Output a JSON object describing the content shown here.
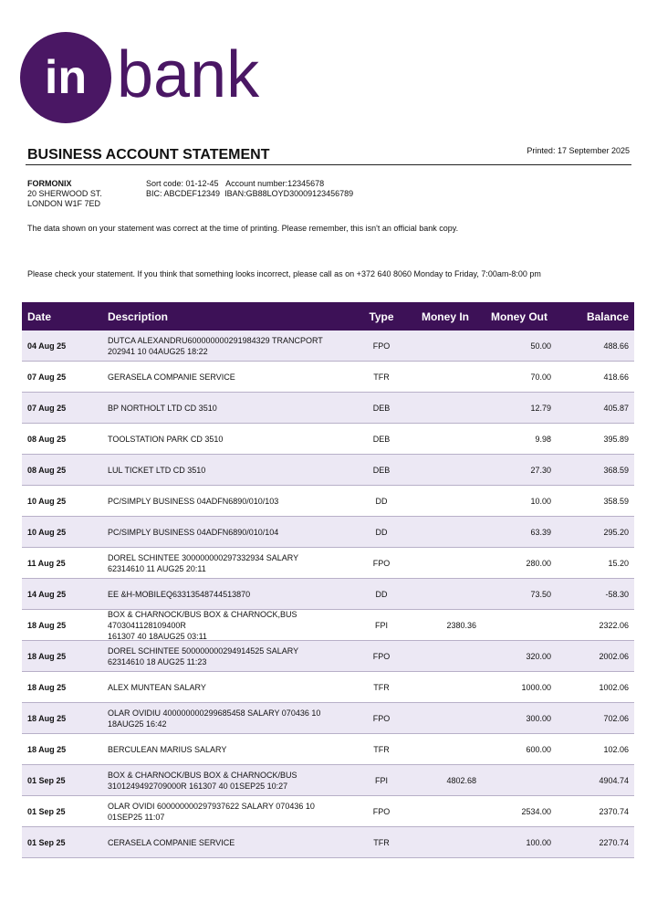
{
  "header": {
    "logo_mark": "in",
    "logo_word": "bank",
    "title": "BUSINESS ACCOUNT STATEMENT",
    "printed": "Printed: 17 September 2025"
  },
  "account": {
    "address": [
      "FORMONIX",
      "20 SHERWOOD ST.",
      "LONDON W1F 7ED"
    ],
    "sort_code": "Sort code: 01-12-45",
    "account_number": "Account number:12345678",
    "bic": "BIC: ABCDEF12349",
    "iban": "IBAN:GB88LOYD30009123456789"
  },
  "notes": [
    "The data shown on your statement was correct at the time of printing. Please remember, this isn't an official bank copy.",
    "Please check your statement. If you think that something looks incorrect, please call as on +372 640 8060 Monday to Friday, 7:00am-8:00 pm"
  ],
  "table": {
    "columns": [
      "Date",
      "Description",
      "Type",
      "Money In",
      "Money Out",
      "Balance"
    ],
    "rows": [
      {
        "date": "04 Aug 25",
        "description": [
          "DUTCA ALEXANDRU600000000291984329 TRANCPORT",
          "202941 10 04AUG25 18:22"
        ],
        "type": "FPO",
        "money_out": "50.00",
        "balance": "488.66"
      },
      {
        "date": "07 Aug 25",
        "description": [
          "GERASELA COMPANIE SERVICE"
        ],
        "type": "TFR",
        "money_out": "70.00",
        "balance": "418.66"
      },
      {
        "date": "07 Aug 25",
        "description": [
          "BP NORTHOLT LTD CD 3510"
        ],
        "type": "DEB",
        "money_out": "12.79",
        "balance": "405.87"
      },
      {
        "date": "08 Aug 25",
        "description": [
          "TOOLSTATION PARK CD 3510"
        ],
        "type": "DEB",
        "money_out": "9.98",
        "balance": "395.89"
      },
      {
        "date": "08 Aug 25",
        "description": [
          "LUL TICKET LTD CD 3510"
        ],
        "type": "DEB",
        "money_out": "27.30",
        "balance": "368.59"
      },
      {
        "date": "10 Aug 25",
        "description": [
          "PC/SIMPLY BUSINESS 04ADFN6890/010/103"
        ],
        "type": "DD",
        "money_out": "10.00",
        "balance": "358.59"
      },
      {
        "date": "10 Aug 25",
        "description": [
          "PC/SIMPLY BUSINESS 04ADFN6890/010/104"
        ],
        "type": "DD",
        "money_out": "63.39",
        "balance": "295.20"
      },
      {
        "date": "11 Aug 25",
        "description": [
          "DOREL SCHINTEE 300000000297332934 SALARY",
          "62314610 11 AUG25 20:11"
        ],
        "type": "FPO",
        "money_out": "280.00",
        "balance": "15.20"
      },
      {
        "date": "14 Aug 25",
        "description": [
          "EE &H-MOBILEQ63313548744513870"
        ],
        "type": "DD",
        "money_out": "73.50",
        "balance": "-58.30"
      },
      {
        "date": "18 Aug 25",
        "description": [
          "BOX & CHARNOCK/BUS BOX & CHARNOCK,BUS 4703041128109400R",
          "161307 40 18AUG25 03:11"
        ],
        "type": "FPI",
        "money_in": "2380.36",
        "balance": "2322.06"
      },
      {
        "date": "18 Aug 25",
        "description": [
          "DOREL SCHINTEE 500000000294914525 SALARY",
          "62314610 18 AUG25 11:23"
        ],
        "type": "FPO",
        "money_out": "320.00",
        "balance": "2002.06"
      },
      {
        "date": "18 Aug 25",
        "description": [
          "ALEX MUNTEAN SALARY"
        ],
        "type": "TFR",
        "money_out": "1000.00",
        "balance": "1002.06"
      },
      {
        "date": "18 Aug 25",
        "description": [
          "OLAR OVIDIU 400000000299685458 SALARY 070436 10",
          "18AUG25 16:42"
        ],
        "type": "FPO",
        "money_out": "300.00",
        "balance": "702.06"
      },
      {
        "date": "18 Aug 25",
        "description": [
          "BERCULEAN MARIUS SALARY"
        ],
        "type": "TFR",
        "money_out": "600.00",
        "balance": "102.06"
      },
      {
        "date": "01 Sep 25",
        "description": [
          "BOX & CHARNOCK/BUS BOX & CHARNOCK/BUS",
          "3101249492709000R 161307 40 01SEP25 10:27"
        ],
        "type": "FPI",
        "money_in": "4802.68",
        "balance": "4904.74"
      },
      {
        "date": "01 Sep 25",
        "description": [
          "OLAR OVIDI 600000000297937622 SALARY 070436 10",
          "01SEP25 11:07"
        ],
        "type": "FPO",
        "money_out": "2534.00",
        "balance": "2370.74"
      },
      {
        "date": "01 Sep 25",
        "description": [
          "CERASELA COMPANIE SERVICE"
        ],
        "type": "TFR",
        "money_out": "100.00",
        "balance": "2270.74"
      }
    ]
  }
}
